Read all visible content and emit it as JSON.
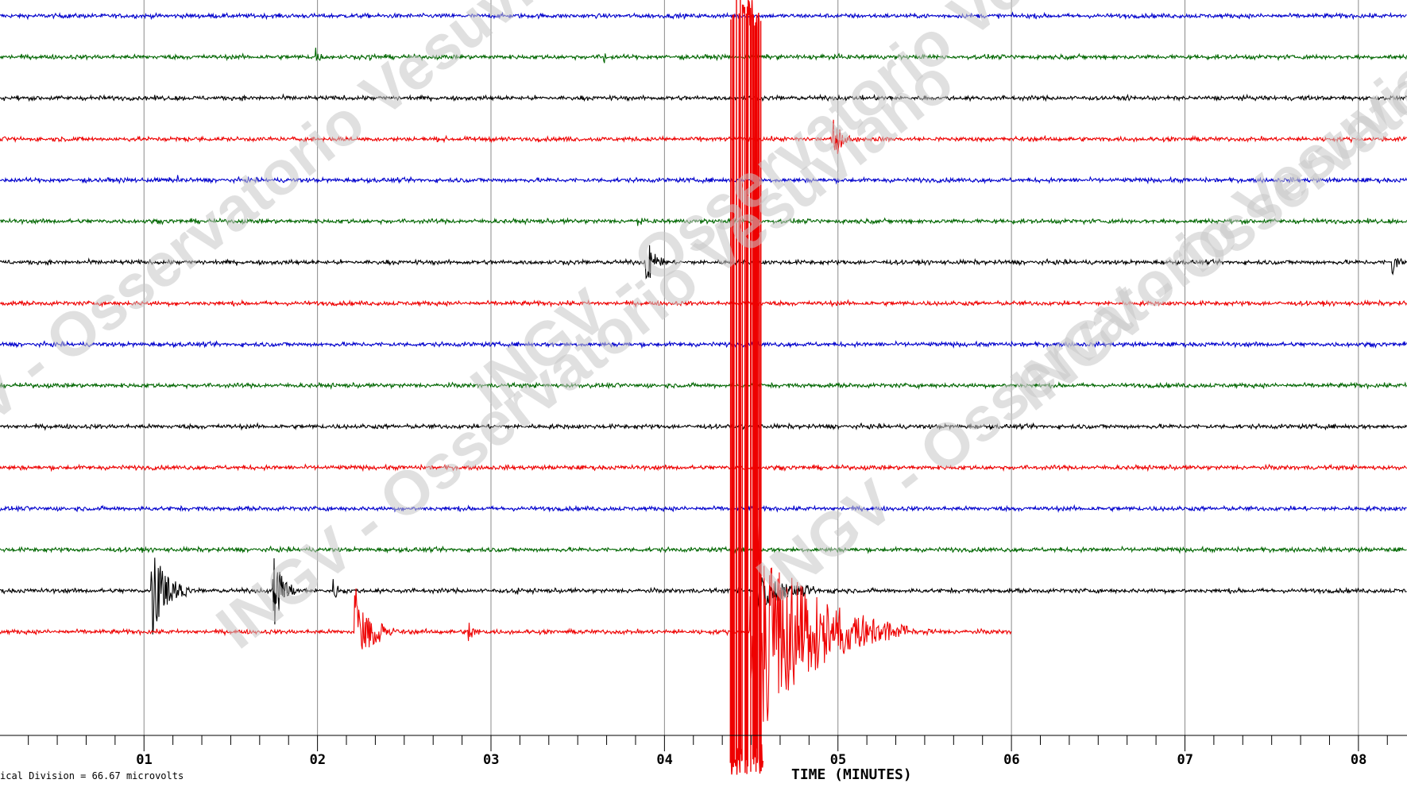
{
  "chart_data": {
    "type": "line",
    "xlabel": "TIME (MINUTES)",
    "x_tick_labels": [
      "01",
      "02",
      "03",
      "04",
      "05",
      "06",
      "07",
      "08"
    ],
    "x_ticks_minutes": [
      1,
      2,
      3,
      4,
      5,
      6,
      7,
      8
    ],
    "xlim": [
      0.17,
      8.28
    ],
    "scale_note": "ical Division =    66.67 microvolts",
    "watermark_text": "INGV - Osservatorio Vesuviano",
    "grid": "vertical lines at each minute",
    "trace_color_cycle": [
      "#0000cc",
      "#006600",
      "#000000",
      "#ee0000"
    ],
    "trace_count": 16,
    "last_trace_end_minutes": 6.0,
    "events": [
      {
        "trace": 1,
        "t": 2.0,
        "amp": 0.5,
        "dur": 0.05
      },
      {
        "trace": 1,
        "t": 2.31,
        "amp": 0.4,
        "dur": 0.05
      },
      {
        "trace": 1,
        "t": 3.66,
        "amp": 0.4,
        "dur": 0.05
      },
      {
        "trace": 3,
        "t": 4.97,
        "amp": 1.2,
        "dur": 0.15
      },
      {
        "trace": 4,
        "t": 1.2,
        "amp": 0.35,
        "dur": 0.05
      },
      {
        "trace": 5,
        "t": 3.85,
        "amp": 0.3,
        "dur": 0.05
      },
      {
        "trace": 6,
        "t": 3.9,
        "amp": 1.6,
        "dur": 0.12
      },
      {
        "trace": 6,
        "t": 8.2,
        "amp": 0.9,
        "dur": 0.08
      },
      {
        "trace": 14,
        "t": 1.05,
        "amp": 3.0,
        "dur": 0.22
      },
      {
        "trace": 14,
        "t": 1.75,
        "amp": 2.0,
        "dur": 0.15
      },
      {
        "trace": 14,
        "t": 2.1,
        "amp": 0.6,
        "dur": 0.1
      },
      {
        "trace": 14,
        "t": 3.15,
        "amp": 0.5,
        "dur": 0.05
      },
      {
        "trace": 14,
        "t": 4.55,
        "amp": 0.9,
        "dur": 0.5
      },
      {
        "trace": 15,
        "t": 2.22,
        "amp": 2.4,
        "dur": 0.25
      },
      {
        "trace": 15,
        "t": 2.88,
        "amp": 0.5,
        "dur": 0.1
      },
      {
        "trace": 15,
        "t": 4.5,
        "amp": 6.0,
        "dur": 0.9
      },
      {
        "trace": 15,
        "t": 5.52,
        "amp": 0.3,
        "dur": 0.08
      }
    ],
    "big_event": {
      "start_t": 4.38,
      "end_t": 4.52,
      "from_trace": 0,
      "to_trace": 15,
      "color": "#ee0000"
    }
  }
}
